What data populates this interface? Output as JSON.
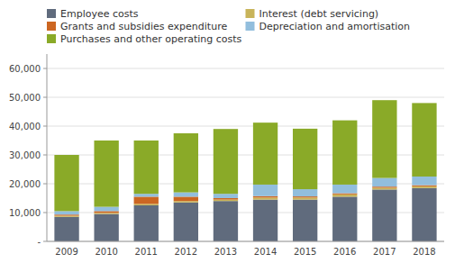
{
  "chart_data": {
    "type": "bar",
    "stacked": true,
    "grid": true,
    "legend": "top",
    "categories": [
      "2009",
      "2010",
      "2011",
      "2012",
      "2013",
      "2014",
      "2015",
      "2016",
      "2017",
      "2018"
    ],
    "series": [
      {
        "name": "Employee costs",
        "color": "#606b7d",
        "values": [
          8500,
          9500,
          12500,
          13500,
          14000,
          14500,
          14500,
          15500,
          18000,
          18500
        ]
      },
      {
        "name": "Interest (debt servicing)",
        "color": "#c8b45a",
        "values": [
          400,
          400,
          500,
          500,
          500,
          700,
          700,
          800,
          600,
          600
        ]
      },
      {
        "name": "Grants and subsidies expenditure",
        "color": "#cc6622",
        "values": [
          400,
          600,
          2500,
          1500,
          500,
          500,
          400,
          400,
          400,
          400
        ]
      },
      {
        "name": "Depreciation and amortisation",
        "color": "#92bedd",
        "values": [
          1200,
          1500,
          1000,
          1500,
          1500,
          4000,
          2500,
          3000,
          3000,
          3000
        ]
      },
      {
        "name": "Purchases and other operating costs",
        "color": "#8aaa28",
        "values": [
          19500,
          23000,
          18500,
          20500,
          22500,
          21500,
          21000,
          22300,
          27000,
          25500
        ]
      }
    ],
    "ylim": [
      0,
      65000
    ],
    "yticks": [
      {
        "value": 0,
        "label": "-"
      },
      {
        "value": 10000,
        "label": "10,000"
      },
      {
        "value": 20000,
        "label": "20,000"
      },
      {
        "value": 30000,
        "label": "30,000"
      },
      {
        "value": 40000,
        "label": "40,000"
      },
      {
        "value": 50000,
        "label": "50,000"
      },
      {
        "value": 60000,
        "label": "60,000"
      }
    ]
  }
}
